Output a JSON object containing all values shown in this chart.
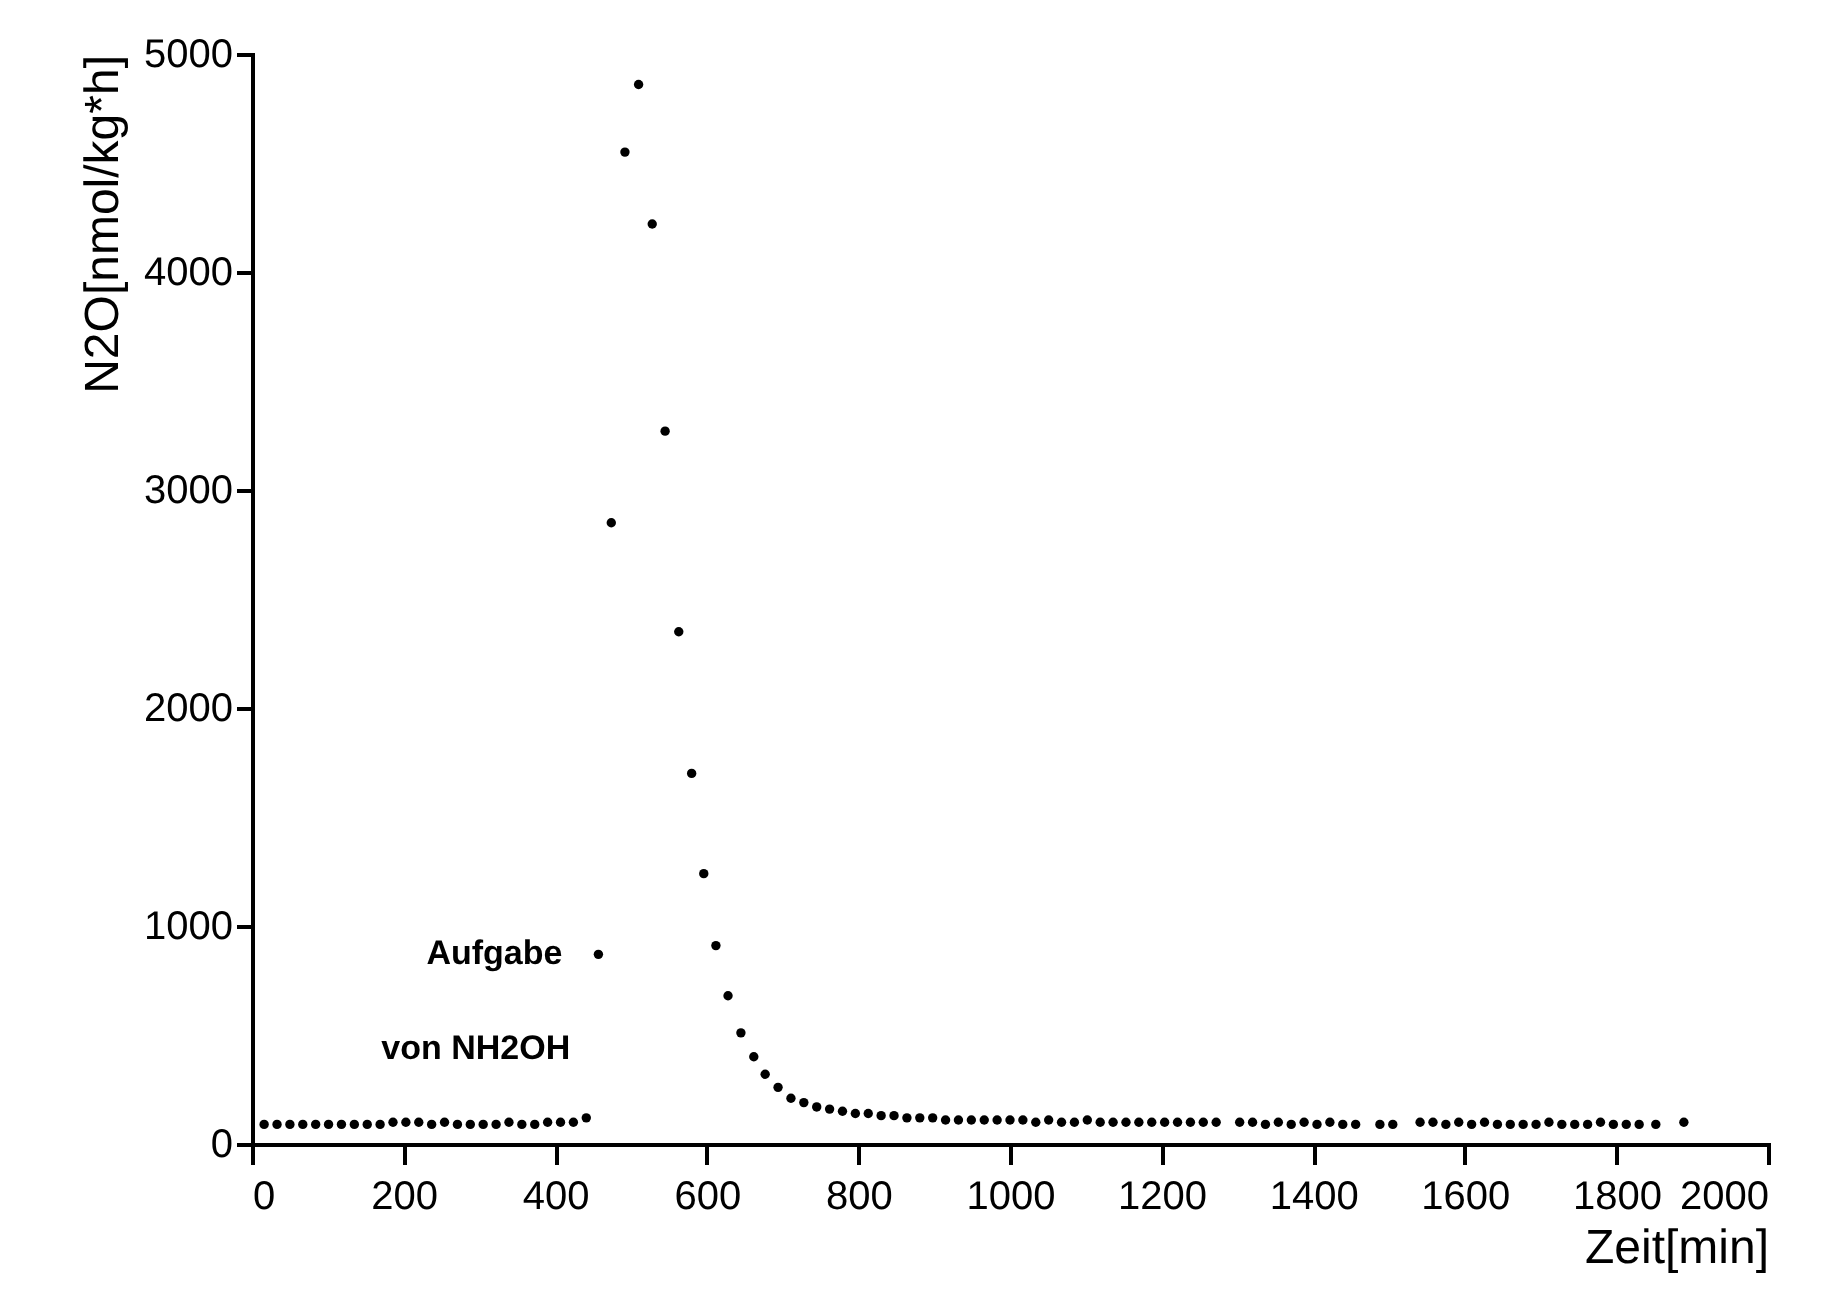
{
  "chart_data": {
    "type": "scatter",
    "xlabel": "Zeit[min]",
    "ylabel": "N2O[nmol/kg*h]",
    "xlim": [
      0,
      2000
    ],
    "ylim": [
      0,
      5000
    ],
    "xticks": [
      0,
      200,
      400,
      600,
      800,
      1000,
      1200,
      1400,
      1600,
      1800,
      2000
    ],
    "yticks": [
      0,
      1000,
      2000,
      3000,
      4000,
      5000
    ],
    "grid": false,
    "marker": "circle",
    "annotations": [
      {
        "text": "Aufgabe",
        "x": 457,
        "y": 870
      },
      {
        "text": "von NH2OH",
        "x": 441,
        "y": 125
      }
    ],
    "series": [
      {
        "color": "#000000",
        "x": [
          16,
          33,
          50,
          67,
          84,
          101,
          118,
          135,
          152,
          169,
          186,
          203,
          220,
          237,
          254,
          271,
          288,
          305,
          322,
          339,
          356,
          373,
          390,
          407,
          424,
          441,
          457,
          474,
          492,
          510,
          528,
          545,
          563,
          580,
          596,
          612,
          628,
          645,
          662,
          677,
          694,
          711,
          728,
          745,
          762,
          779,
          796,
          813,
          830,
          847,
          864,
          881,
          898,
          915,
          932,
          949,
          966,
          983,
          1000,
          1017,
          1034,
          1051,
          1068,
          1085,
          1102,
          1119,
          1136,
          1153,
          1170,
          1187,
          1204,
          1221,
          1238,
          1255,
          1272,
          1303,
          1320,
          1337,
          1354,
          1371,
          1388,
          1405,
          1422,
          1439,
          1456,
          1488,
          1505,
          1541,
          1558,
          1575,
          1592,
          1609,
          1626,
          1643,
          1660,
          1677,
          1694,
          1711,
          1728,
          1745,
          1762,
          1779,
          1796,
          1813,
          1830,
          1852,
          1889
        ],
        "values": [
          90,
          90,
          90,
          90,
          90,
          90,
          90,
          90,
          90,
          90,
          100,
          100,
          100,
          90,
          100,
          90,
          90,
          90,
          90,
          100,
          90,
          90,
          100,
          100,
          100,
          120,
          870,
          2850,
          4550,
          4860,
          4220,
          3270,
          2350,
          1700,
          1240,
          910,
          680,
          510,
          400,
          320,
          260,
          210,
          190,
          170,
          160,
          150,
          140,
          140,
          130,
          130,
          120,
          120,
          120,
          110,
          110,
          110,
          110,
          110,
          110,
          110,
          100,
          110,
          100,
          100,
          110,
          100,
          100,
          100,
          100,
          100,
          100,
          100,
          100,
          100,
          100,
          100,
          100,
          90,
          100,
          90,
          100,
          90,
          100,
          90,
          90,
          90,
          90,
          100,
          100,
          90,
          100,
          90,
          100,
          90,
          90,
          90,
          90,
          100,
          90,
          90,
          90,
          100,
          90,
          90,
          90,
          90,
          100
        ]
      }
    ]
  }
}
